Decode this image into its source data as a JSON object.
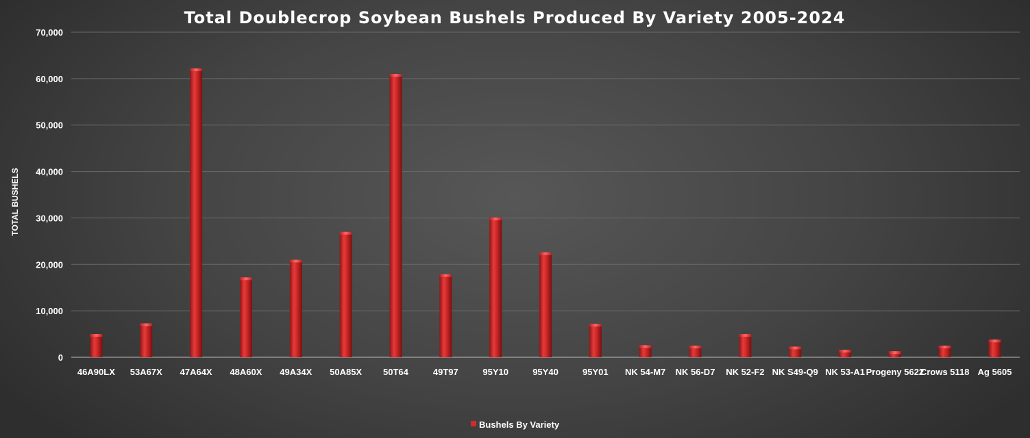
{
  "chart_data": {
    "type": "bar",
    "title": "Total Doublecrop Soybean Bushels Produced By Variety 2005-2024",
    "xlabel": "",
    "ylabel": "TOTAL BUSHELS",
    "ylim": [
      0,
      70000
    ],
    "yticks": [
      "0",
      "10,000",
      "20,000",
      "30,000",
      "40,000",
      "50,000",
      "60,000",
      "70,000"
    ],
    "grid": true,
    "legend_position": "bottom",
    "categories": [
      "46A90LX",
      "53A67X",
      "47A64X",
      "48A60X",
      "49A34X",
      "50A85X",
      "50T64",
      "49T97",
      "95Y10",
      "95Y40",
      "95Y01",
      "NK 54-M7",
      "NK 56-D7",
      "NK 52-F2",
      "NK S49-Q9",
      "NK 53-A1",
      "Progeny 5622",
      "Crows 5118",
      "Ag 5605"
    ],
    "series": [
      {
        "name": "Bushels By Variety",
        "color": "#d42a2a",
        "values": [
          5000,
          7300,
          62200,
          17200,
          21000,
          27000,
          61000,
          17900,
          30100,
          22600,
          7200,
          2600,
          2500,
          5000,
          2300,
          1600,
          1300,
          2500,
          3800
        ]
      }
    ]
  }
}
